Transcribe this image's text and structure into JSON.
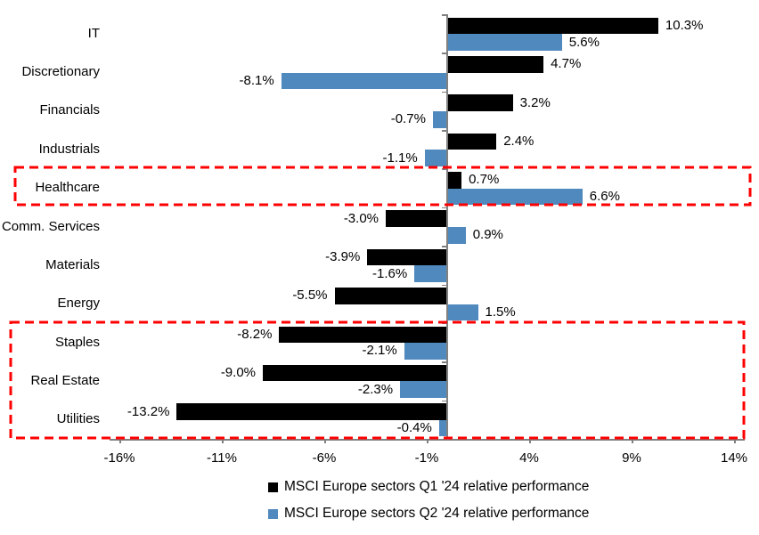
{
  "chart_data": {
    "type": "bar",
    "orientation": "horizontal",
    "title": "",
    "xlabel": "",
    "ylabel": "",
    "grid": false,
    "legend_position": "bottom",
    "categories": [
      "IT",
      "Discretionary",
      "Financials",
      "Industrials",
      "Healthcare",
      "Comm. Services",
      "Materials",
      "Energy",
      "Staples",
      "Real Estate",
      "Utilities"
    ],
    "series": [
      {
        "name": "MSCI Europe sectors Q1 '24 relative performance",
        "color": "#000000",
        "values": [
          10.3,
          4.7,
          3.2,
          2.4,
          0.7,
          -3.0,
          -3.9,
          -5.5,
          -8.2,
          -9.0,
          -13.2
        ],
        "value_labels": [
          "10.3%",
          "4.7%",
          "3.2%",
          "2.4%",
          "0.7%",
          "-3.0%",
          "-3.9%",
          "-5.5%",
          "-8.2%",
          "-9.0%",
          "-13.2%"
        ]
      },
      {
        "name": "MSCI Europe sectors Q2 '24 relative performance",
        "color": "#5089BE",
        "values": [
          5.6,
          -8.1,
          -0.7,
          -1.1,
          6.6,
          0.9,
          -1.6,
          1.5,
          -2.1,
          -2.3,
          -0.4
        ],
        "value_labels": [
          "5.6%",
          "-8.1%",
          "-0.7%",
          "-1.1%",
          "6.6%",
          "0.9%",
          "-1.6%",
          "1.5%",
          "-2.1%",
          "-2.3%",
          "-0.4%"
        ]
      }
    ],
    "x_ticks": [
      {
        "value": -16,
        "label": "-16%"
      },
      {
        "value": -11,
        "label": "-11%"
      },
      {
        "value": -6,
        "label": "-6%"
      },
      {
        "value": -1,
        "label": "-1%"
      },
      {
        "value": 4,
        "label": "4%"
      },
      {
        "value": 9,
        "label": "9%"
      },
      {
        "value": 14,
        "label": "14%"
      }
    ],
    "xlim": [
      -16.5,
      14.5
    ],
    "highlight_boxes": [
      {
        "categories": [
          "Healthcare"
        ],
        "color": "#FF0000",
        "style": "dashed"
      },
      {
        "categories": [
          "Staples",
          "Real Estate",
          "Utilities"
        ],
        "color": "#FF0000",
        "style": "dashed"
      }
    ],
    "axis_color": "#808080"
  }
}
